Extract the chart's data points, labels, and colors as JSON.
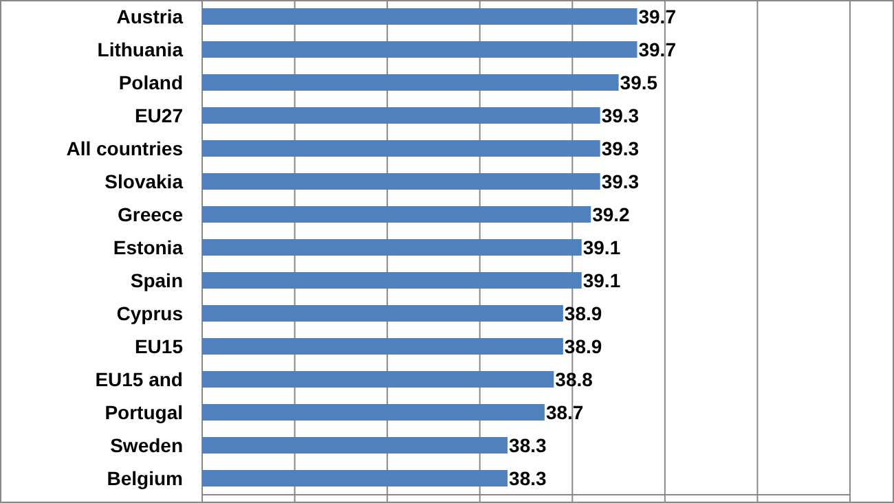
{
  "chart_data": {
    "type": "bar",
    "orientation": "horizontal",
    "categories": [
      "Austria",
      "Lithuania",
      "Poland",
      "EU27",
      "All countries",
      "Slovakia",
      "Greece",
      "Estonia",
      "Spain",
      "Cyprus",
      "EU15",
      "EU15 and",
      "Portugal",
      "Sweden",
      "Belgium"
    ],
    "values": [
      39.7,
      39.7,
      39.5,
      39.3,
      39.3,
      39.3,
      39.2,
      39.1,
      39.1,
      38.9,
      38.9,
      38.8,
      38.7,
      38.3,
      38.3
    ],
    "color": "#4f81bd",
    "xlim": [
      35,
      42
    ],
    "xticks": [
      {
        "value": 35,
        "label": null
      },
      {
        "value": 36,
        "label": null
      },
      {
        "value": 37,
        "label": null
      },
      {
        "value": 38,
        "label": null
      },
      {
        "value": 39,
        "label": null
      },
      {
        "value": 40,
        "label": null
      },
      {
        "value": 41,
        "label": null
      },
      {
        "value": 42,
        "label": null
      }
    ],
    "tick_labels": "y",
    "grid": "x",
    "data_labels": true
  }
}
